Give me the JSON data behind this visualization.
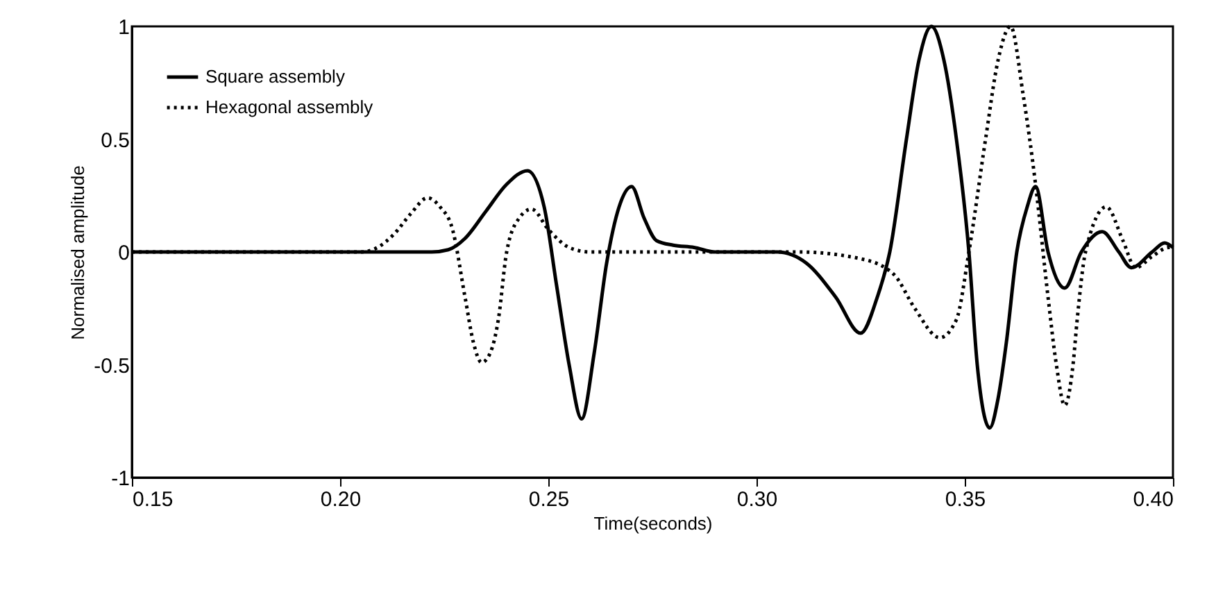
{
  "chart_data": {
    "type": "line",
    "xlabel": "Time(seconds)",
    "ylabel": "Normalised amplitude",
    "xlim": [
      0.15,
      0.4
    ],
    "xticks": [
      {
        "value": 0.15,
        "label": "0.15"
      },
      {
        "value": 0.2,
        "label": "0.20"
      },
      {
        "value": 0.25,
        "label": "0.25"
      },
      {
        "value": 0.3,
        "label": "0.30"
      },
      {
        "value": 0.35,
        "label": "0.35"
      },
      {
        "value": 0.4,
        "label": "0.40"
      }
    ],
    "ylim": [
      -1,
      1
    ],
    "yticks": [
      -1,
      -0.5,
      0,
      0.5,
      1
    ],
    "grid": false,
    "legend": "top left",
    "marker": "none",
    "series": [
      {
        "name": "Square assembly",
        "color": "#000000",
        "line_style": "solid",
        "x": [
          0.15,
          0.2,
          0.222,
          0.226,
          0.23,
          0.235,
          0.24,
          0.245,
          0.249,
          0.252,
          0.255,
          0.258,
          0.261,
          0.264,
          0.267,
          0.27,
          0.273,
          0.276,
          0.28,
          0.285,
          0.29,
          0.305,
          0.312,
          0.319,
          0.325,
          0.329,
          0.332,
          0.336,
          0.339,
          0.342,
          0.345,
          0.348,
          0.351,
          0.353,
          0.356,
          0.358,
          0.36,
          0.3625,
          0.365,
          0.367,
          0.37,
          0.374,
          0.378,
          0.383,
          0.387,
          0.39,
          0.395,
          0.398,
          0.4
        ],
        "values": [
          0,
          0,
          0,
          0.01,
          0.06,
          0.18,
          0.3,
          0.36,
          0.2,
          -0.15,
          -0.5,
          -0.74,
          -0.45,
          -0.05,
          0.2,
          0.29,
          0.15,
          0.05,
          0.03,
          0.02,
          0,
          0,
          -0.05,
          -0.2,
          -0.36,
          -0.2,
          0,
          0.5,
          0.85,
          1,
          0.85,
          0.5,
          0,
          -0.5,
          -0.78,
          -0.65,
          -0.4,
          0,
          0.2,
          0.29,
          0,
          -0.16,
          0,
          0.09,
          0,
          -0.07,
          0,
          0.04,
          0.02
        ]
      },
      {
        "name": "Hexagonal assembly",
        "color": "#000000",
        "line_style": "dotted",
        "x": [
          0.15,
          0.205,
          0.209,
          0.213,
          0.217,
          0.221,
          0.224,
          0.227,
          0.23,
          0.232,
          0.234,
          0.236,
          0.238,
          0.24,
          0.243,
          0.246,
          0.25,
          0.255,
          0.26,
          0.31,
          0.325,
          0.333,
          0.338,
          0.344,
          0.348,
          0.351,
          0.355,
          0.358,
          0.361,
          0.364,
          0.367,
          0.37,
          0.372,
          0.374,
          0.376,
          0.377,
          0.379,
          0.384,
          0.388,
          0.391,
          0.395,
          0.399,
          0.4
        ],
        "values": [
          0,
          0,
          0.02,
          0.08,
          0.17,
          0.24,
          0.2,
          0.1,
          -0.2,
          -0.4,
          -0.49,
          -0.45,
          -0.3,
          0,
          0.15,
          0.19,
          0.1,
          0.02,
          0,
          0,
          -0.03,
          -0.1,
          -0.25,
          -0.38,
          -0.3,
          0,
          0.5,
          0.85,
          1,
          0.7,
          0.3,
          -0.2,
          -0.5,
          -0.68,
          -0.5,
          -0.3,
          0,
          0.2,
          0.05,
          -0.07,
          -0.02,
          0.02,
          0.02
        ]
      }
    ]
  }
}
